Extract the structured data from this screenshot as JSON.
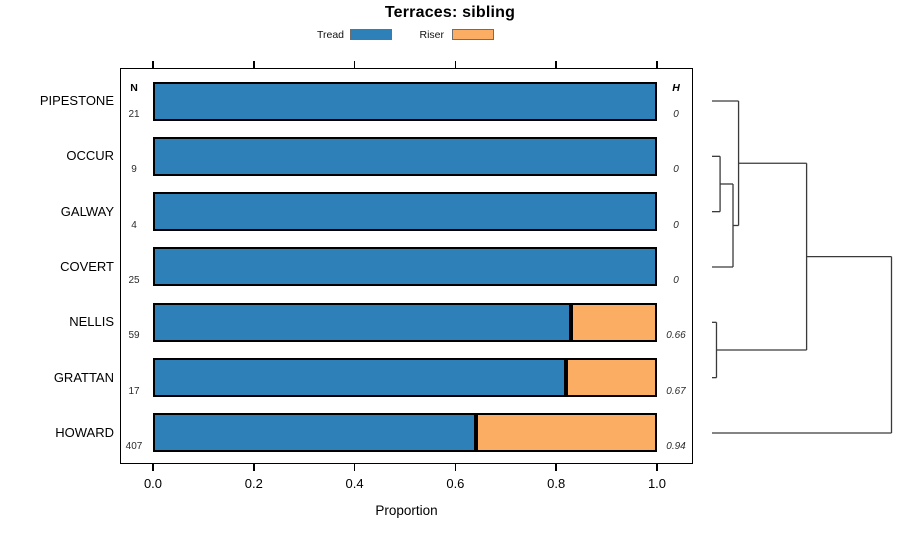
{
  "title": "Terraces: sibling",
  "legend": [
    {
      "label": "Tread",
      "color": "#2E80B9"
    },
    {
      "label": "Riser",
      "color": "#FBAD63"
    }
  ],
  "columns": {
    "n_header": "N",
    "h_header": "H"
  },
  "axis": {
    "xlabel": "Proportion",
    "tick_labels": [
      "0.0",
      "0.2",
      "0.4",
      "0.6",
      "0.8",
      "1.0"
    ]
  },
  "chart_data": {
    "type": "bar",
    "orientation": "horizontal-stacked",
    "title": "Terraces: sibling",
    "xlabel": "Proportion",
    "xlim": [
      0,
      1
    ],
    "x_ticks": [
      0,
      0.2,
      0.4,
      0.6,
      0.8,
      1.0
    ],
    "legend_position": "top",
    "series_names": [
      "Tread",
      "Riser"
    ],
    "colors": {
      "Tread": "#2E80B9",
      "Riser": "#FBAD63",
      "bar_border": "#000000",
      "dendrogram_line": "#3a3a3a"
    },
    "rows": [
      {
        "label": "PIPESTONE",
        "n": "21",
        "tread": 1.0,
        "riser": 0.0,
        "h": "0"
      },
      {
        "label": "OCCUR",
        "n": "9",
        "tread": 1.0,
        "riser": 0.0,
        "h": "0"
      },
      {
        "label": "GALWAY",
        "n": "4",
        "tread": 1.0,
        "riser": 0.0,
        "h": "0"
      },
      {
        "label": "COVERT",
        "n": "25",
        "tread": 1.0,
        "riser": 0.0,
        "h": "0"
      },
      {
        "label": "NELLIS",
        "n": "59",
        "tread": 0.83,
        "riser": 0.17,
        "h": "0.66"
      },
      {
        "label": "GRATTAN",
        "n": "17",
        "tread": 0.82,
        "riser": 0.18,
        "h": "0.67"
      },
      {
        "label": "HOWARD",
        "n": "407",
        "tread": 0.64,
        "riser": 0.36,
        "h": "0.94"
      }
    ],
    "dendrogram": {
      "leaves": [
        "PIPESTONE",
        "OCCUR",
        "GALWAY",
        "COVERT",
        "NELLIS",
        "GRATTAN",
        "HOWARD"
      ],
      "merges": [
        {
          "id": "m1",
          "children": [
            "OCCUR",
            "GALWAY"
          ],
          "height": 0.045
        },
        {
          "id": "m2",
          "children": [
            "m1",
            "COVERT"
          ],
          "height": 0.117
        },
        {
          "id": "m3",
          "children": [
            "PIPESTONE",
            "m2"
          ],
          "height": 0.148
        },
        {
          "id": "m4",
          "children": [
            "NELLIS",
            "GRATTAN"
          ],
          "height": 0.025
        },
        {
          "id": "m5",
          "children": [
            "m3",
            "m4"
          ],
          "height": 0.527
        },
        {
          "id": "m6",
          "children": [
            "m5",
            "HOWARD"
          ],
          "height": 1.0
        }
      ]
    }
  }
}
